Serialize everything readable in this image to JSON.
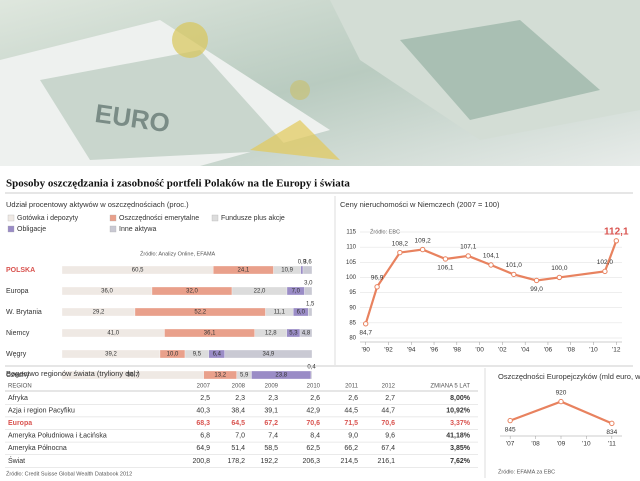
{
  "title": "Sposoby oszczędzania i zasobność portfeli Polaków na tle Europy i świata",
  "chart_data": [
    {
      "type": "stacked-hbar",
      "title": "Udział procentowy aktywów w oszczędnościach (proc.)",
      "source": "Źródło: Analizy Online, EFAMA",
      "categories": [
        "POLSKA",
        "Europa",
        "W. Brytania",
        "Niemcy",
        "Węgry",
        "Czechy"
      ],
      "xlim": [
        0,
        100
      ],
      "series": [
        {
          "name": "Gotówka i depozyty",
          "color": "#efe9e4",
          "values": [
            60.5,
            36.0,
            29.2,
            41.0,
            39.2,
            56.7
          ],
          "value_labels": [
            "60,5",
            "36,0",
            "29,2",
            "41,0",
            "39,2",
            "56,7"
          ]
        },
        {
          "name": "Oszczędności emerytalne",
          "color": "#e9a08b",
          "values": [
            24.1,
            32.0,
            52.2,
            36.1,
            10.0,
            13.2
          ],
          "value_labels": [
            "24,1",
            "32,0",
            "52,2",
            "36,1",
            "10,0",
            "13,2"
          ]
        },
        {
          "name": "Fundusze plus akcje",
          "color": "#dcdcdc",
          "values": [
            10.9,
            22.0,
            11.1,
            12.8,
            9.5,
            5.9
          ],
          "value_labels": [
            "10,9",
            "22,0",
            "11,1",
            "12,8",
            "9,5",
            "5,9"
          ]
        },
        {
          "name": "Obligacje",
          "color": "#9a8cc6",
          "values": [
            0.9,
            7.0,
            6.0,
            5.3,
            6.4,
            23.8
          ],
          "value_labels": [
            "0,9",
            "7,0",
            "6,0",
            "5,3",
            "6,4",
            "23,8"
          ]
        },
        {
          "name": "Inne aktywa",
          "color": "#c9c9d3",
          "values": [
            3.6,
            3.0,
            1.5,
            4.8,
            34.9,
            0.4
          ],
          "value_labels": [
            "3,6",
            "3,0",
            "1,5",
            "4,8",
            "34,9",
            "0,4"
          ]
        }
      ]
    },
    {
      "type": "line",
      "title": "Ceny nieruchomości w Niemczech (2007 = 100)",
      "source": "Źródło: EBC",
      "x": [
        1990,
        1991,
        1993,
        1995,
        1997,
        1999,
        2001,
        2003,
        2005,
        2007,
        2011,
        2012
      ],
      "values": [
        84.7,
        96.9,
        108.2,
        109.2,
        106.1,
        107.1,
        104.1,
        101.0,
        99.0,
        100.0,
        102.0,
        112.1
      ],
      "value_labels": [
        "84,7",
        "96,9",
        "108,2",
        "109,2",
        "106,1",
        "107,1",
        "104,1",
        "101,0",
        "99,0",
        "100,0",
        "102,0",
        "112,1"
      ],
      "color": "#e8825f",
      "xlim": [
        1989.5,
        2012.5
      ],
      "ylim": [
        80,
        115
      ],
      "xticks": [
        {
          "value": 1990,
          "label": "'90"
        },
        {
          "value": 1992,
          "label": "'92"
        },
        {
          "value": 1994,
          "label": "'94"
        },
        {
          "value": 1996,
          "label": "'96"
        },
        {
          "value": 1998,
          "label": "'98"
        },
        {
          "value": 2000,
          "label": "'00"
        },
        {
          "value": 2002,
          "label": "'02"
        },
        {
          "value": 2004,
          "label": "'04"
        },
        {
          "value": 2006,
          "label": "'06"
        },
        {
          "value": 2008,
          "label": "'08"
        },
        {
          "value": 2010,
          "label": "'10"
        },
        {
          "value": 2012,
          "label": "'12"
        }
      ],
      "yticks": [
        80,
        85,
        90,
        95,
        100,
        105,
        110,
        115
      ],
      "grid": true
    },
    {
      "type": "line",
      "title": "Oszczędności Europejczyków (mld euro, w przybliżeniu)",
      "source": "Źródło: EFAMA za EBC",
      "x": [
        2007,
        2009,
        2011
      ],
      "values": [
        845,
        920,
        834
      ],
      "color": "#e8825f",
      "xlim": [
        2006.6,
        2011.4
      ],
      "ylim": [
        800,
        950
      ],
      "xticks": [
        {
          "value": 2007,
          "label": "'07"
        },
        {
          "value": 2008,
          "label": "'08"
        },
        {
          "value": 2009,
          "label": "'09"
        },
        {
          "value": 2010,
          "label": "'10"
        },
        {
          "value": 2011,
          "label": "'11"
        }
      ]
    }
  ],
  "table": {
    "title": "Bogactwo regionów świata (tryliony dol.)",
    "header": [
      "REGION",
      "2007",
      "2008",
      "2009",
      "2010",
      "2011",
      "2012",
      "ZMIANA 5 LAT"
    ],
    "rows": [
      [
        "Afryka",
        "2,5",
        "2,3",
        "2,3",
        "2,6",
        "2,6",
        "2,7",
        "8,00%"
      ],
      [
        "Azja i region Pacyfiku",
        "40,3",
        "38,4",
        "39,1",
        "42,9",
        "44,5",
        "44,7",
        "10,92%"
      ],
      [
        "Europa",
        "68,3",
        "64,5",
        "67,2",
        "70,6",
        "71,5",
        "70,6",
        "3,37%"
      ],
      [
        "Ameryka Południowa i Łacińska",
        "6,8",
        "7,0",
        "7,4",
        "8,4",
        "9,0",
        "9,6",
        "41,18%"
      ],
      [
        "Ameryka Północna",
        "64,9",
        "51,4",
        "58,5",
        "62,5",
        "66,2",
        "67,4",
        "3,85%"
      ],
      [
        "Świat",
        "200,8",
        "178,2",
        "192,2",
        "206,3",
        "214,5",
        "216,1",
        "7,62%"
      ]
    ],
    "source": "Źródło: Credit Suisse Global Wealth Databook 2012"
  }
}
